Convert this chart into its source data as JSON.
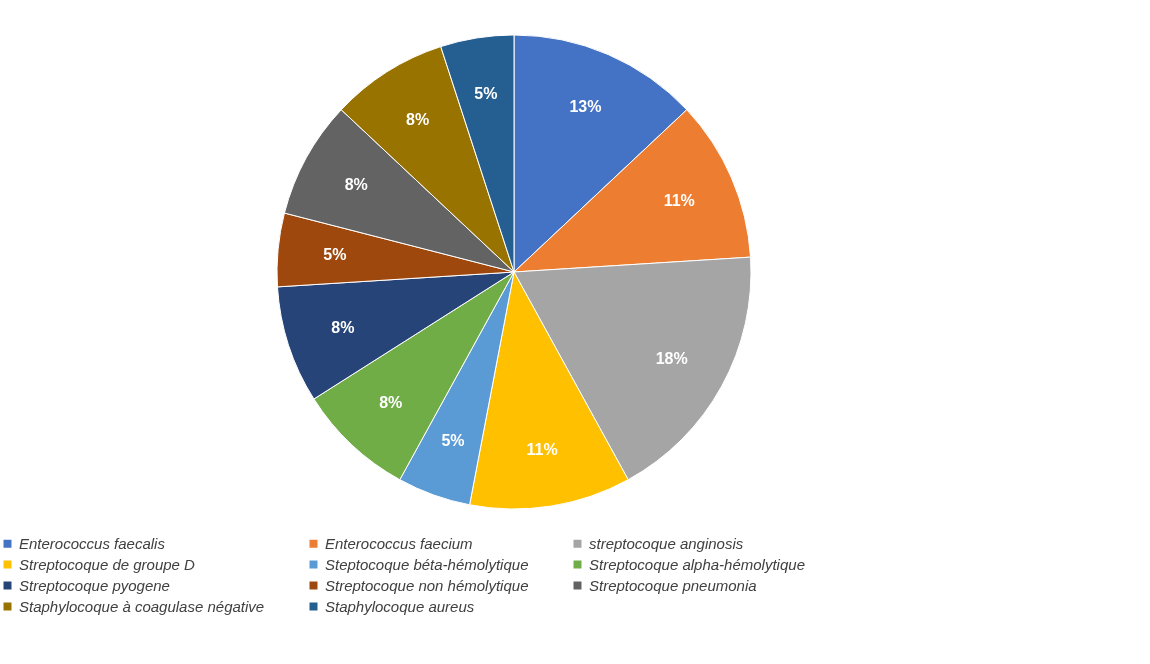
{
  "chart_data": {
    "type": "pie",
    "categories": [
      "Enterococcus faecalis",
      "Enterococcus faecium",
      "streptocoque anginosis",
      "Streptocoque de groupe D",
      "Steptocoque béta-hémolytique",
      "Streptocoque alpha-hémolytique",
      "Streptocoque pyogene",
      "Streptocoque non hémolytique",
      "Streptocoque pneumonia",
      "Staphylocoque à coagulase négative",
      "Staphylocoque aureus"
    ],
    "values": [
      13,
      11,
      18,
      11,
      5,
      8,
      8,
      5,
      8,
      8,
      5
    ],
    "value_labels": [
      "13%",
      "11%",
      "18%",
      "11%",
      "5%",
      "8%",
      "8%",
      "5%",
      "8%",
      "8%",
      "5%"
    ],
    "colors": [
      "#4472c4",
      "#ed7d31",
      "#a5a5a5",
      "#ffc000",
      "#5b9bd5",
      "#70ad47",
      "#264478",
      "#9e480e",
      "#636363",
      "#997300",
      "#255e91"
    ],
    "legend": "bottom"
  }
}
